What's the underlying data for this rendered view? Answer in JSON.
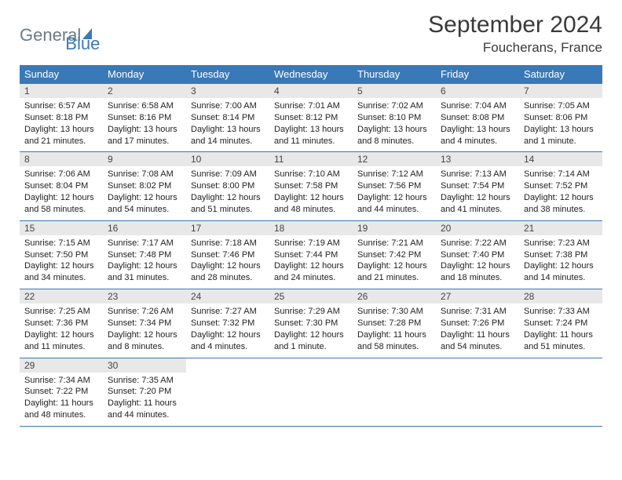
{
  "brand": {
    "general": "General",
    "blue": "Blue"
  },
  "title": {
    "month": "September 2024",
    "location": "Foucherans, France"
  },
  "colors": {
    "accent": "#3a79b7",
    "daybg": "#e8e8e8",
    "text": "#3a3a3a"
  },
  "daysOfWeek": [
    "Sunday",
    "Monday",
    "Tuesday",
    "Wednesday",
    "Thursday",
    "Friday",
    "Saturday"
  ],
  "weeks": [
    [
      {
        "d": "1",
        "sr": "6:57 AM",
        "ss": "8:18 PM",
        "dl": "13 hours and 21 minutes."
      },
      {
        "d": "2",
        "sr": "6:58 AM",
        "ss": "8:16 PM",
        "dl": "13 hours and 17 minutes."
      },
      {
        "d": "3",
        "sr": "7:00 AM",
        "ss": "8:14 PM",
        "dl": "13 hours and 14 minutes."
      },
      {
        "d": "4",
        "sr": "7:01 AM",
        "ss": "8:12 PM",
        "dl": "13 hours and 11 minutes."
      },
      {
        "d": "5",
        "sr": "7:02 AM",
        "ss": "8:10 PM",
        "dl": "13 hours and 8 minutes."
      },
      {
        "d": "6",
        "sr": "7:04 AM",
        "ss": "8:08 PM",
        "dl": "13 hours and 4 minutes."
      },
      {
        "d": "7",
        "sr": "7:05 AM",
        "ss": "8:06 PM",
        "dl": "13 hours and 1 minute."
      }
    ],
    [
      {
        "d": "8",
        "sr": "7:06 AM",
        "ss": "8:04 PM",
        "dl": "12 hours and 58 minutes."
      },
      {
        "d": "9",
        "sr": "7:08 AM",
        "ss": "8:02 PM",
        "dl": "12 hours and 54 minutes."
      },
      {
        "d": "10",
        "sr": "7:09 AM",
        "ss": "8:00 PM",
        "dl": "12 hours and 51 minutes."
      },
      {
        "d": "11",
        "sr": "7:10 AM",
        "ss": "7:58 PM",
        "dl": "12 hours and 48 minutes."
      },
      {
        "d": "12",
        "sr": "7:12 AM",
        "ss": "7:56 PM",
        "dl": "12 hours and 44 minutes."
      },
      {
        "d": "13",
        "sr": "7:13 AM",
        "ss": "7:54 PM",
        "dl": "12 hours and 41 minutes."
      },
      {
        "d": "14",
        "sr": "7:14 AM",
        "ss": "7:52 PM",
        "dl": "12 hours and 38 minutes."
      }
    ],
    [
      {
        "d": "15",
        "sr": "7:15 AM",
        "ss": "7:50 PM",
        "dl": "12 hours and 34 minutes."
      },
      {
        "d": "16",
        "sr": "7:17 AM",
        "ss": "7:48 PM",
        "dl": "12 hours and 31 minutes."
      },
      {
        "d": "17",
        "sr": "7:18 AM",
        "ss": "7:46 PM",
        "dl": "12 hours and 28 minutes."
      },
      {
        "d": "18",
        "sr": "7:19 AM",
        "ss": "7:44 PM",
        "dl": "12 hours and 24 minutes."
      },
      {
        "d": "19",
        "sr": "7:21 AM",
        "ss": "7:42 PM",
        "dl": "12 hours and 21 minutes."
      },
      {
        "d": "20",
        "sr": "7:22 AM",
        "ss": "7:40 PM",
        "dl": "12 hours and 18 minutes."
      },
      {
        "d": "21",
        "sr": "7:23 AM",
        "ss": "7:38 PM",
        "dl": "12 hours and 14 minutes."
      }
    ],
    [
      {
        "d": "22",
        "sr": "7:25 AM",
        "ss": "7:36 PM",
        "dl": "12 hours and 11 minutes."
      },
      {
        "d": "23",
        "sr": "7:26 AM",
        "ss": "7:34 PM",
        "dl": "12 hours and 8 minutes."
      },
      {
        "d": "24",
        "sr": "7:27 AM",
        "ss": "7:32 PM",
        "dl": "12 hours and 4 minutes."
      },
      {
        "d": "25",
        "sr": "7:29 AM",
        "ss": "7:30 PM",
        "dl": "12 hours and 1 minute."
      },
      {
        "d": "26",
        "sr": "7:30 AM",
        "ss": "7:28 PM",
        "dl": "11 hours and 58 minutes."
      },
      {
        "d": "27",
        "sr": "7:31 AM",
        "ss": "7:26 PM",
        "dl": "11 hours and 54 minutes."
      },
      {
        "d": "28",
        "sr": "7:33 AM",
        "ss": "7:24 PM",
        "dl": "11 hours and 51 minutes."
      }
    ],
    [
      {
        "d": "29",
        "sr": "7:34 AM",
        "ss": "7:22 PM",
        "dl": "11 hours and 48 minutes."
      },
      {
        "d": "30",
        "sr": "7:35 AM",
        "ss": "7:20 PM",
        "dl": "11 hours and 44 minutes."
      },
      null,
      null,
      null,
      null,
      null
    ]
  ],
  "labels": {
    "sunrise": "Sunrise: ",
    "sunset": "Sunset: ",
    "daylight": "Daylight: "
  }
}
